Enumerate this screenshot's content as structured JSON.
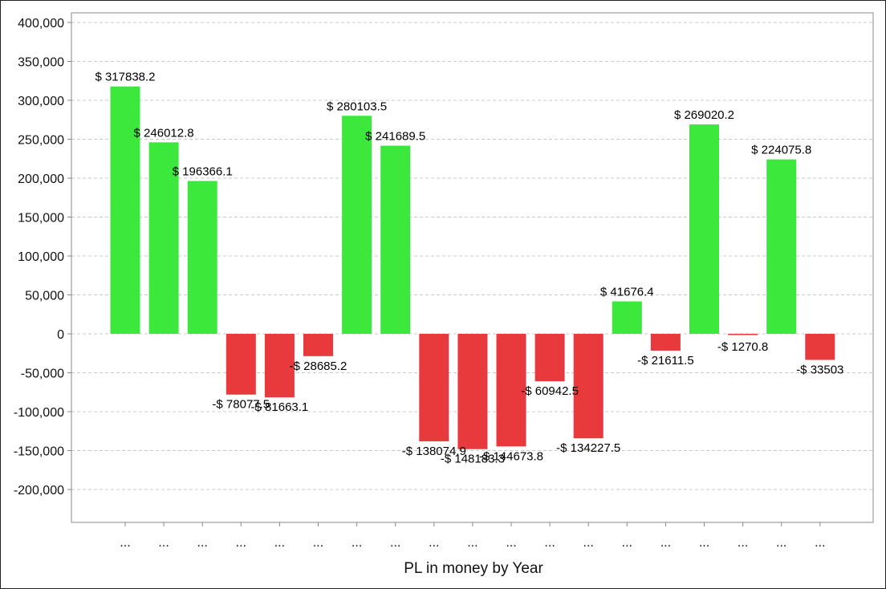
{
  "chart_data": {
    "type": "bar",
    "title": "",
    "xlabel": "PL in money by Year",
    "ylabel": "",
    "ylim": [
      -240000,
      410000
    ],
    "yticks": [
      -200000,
      -150000,
      -100000,
      -50000,
      0,
      50000,
      100000,
      150000,
      200000,
      250000,
      300000,
      350000,
      400000
    ],
    "ytick_labels": [
      "-200,000",
      "-150,000",
      "-100,000",
      "-50,000",
      "0",
      "50,000",
      "100,000",
      "150,000",
      "200,000",
      "250,000",
      "300,000",
      "350,000",
      "400,000"
    ],
    "grid": true,
    "categories": [
      "...",
      "...",
      "...",
      "...",
      "...",
      "...",
      "...",
      "...",
      "...",
      "...",
      "...",
      "...",
      "...",
      "...",
      "...",
      "...",
      "...",
      "...",
      "..."
    ],
    "values": [
      317838.2,
      246012.8,
      196366.1,
      -78077.5,
      -81663.1,
      -28685.2,
      280103.5,
      241689.5,
      -138074.9,
      -148183.3,
      -144673.8,
      -60942.5,
      -134227.5,
      41676.4,
      -21611.5,
      269020.2,
      -1270.8,
      224075.8,
      -33503
    ],
    "data_labels": [
      "$ 317838.2",
      "$ 246012.8",
      "$ 196366.1",
      "-$ 78077.5",
      "-$ 81663.1",
      "-$ 28685.2",
      "$ 280103.5",
      "$ 241689.5",
      "-$ 138074.9",
      "-$ 148183.3",
      "-$ 144673.8",
      "-$ 60942.5",
      "-$ 134227.5",
      "$ 41676.4",
      "-$ 21611.5",
      "$ 269020.2",
      "-$ 1270.8",
      "$ 224075.8",
      "-$ 33503"
    ],
    "colors": {
      "positive": "#3de83d",
      "negative": "#e8393d",
      "grid": "#c8c8c8",
      "axis": "#888888"
    }
  }
}
